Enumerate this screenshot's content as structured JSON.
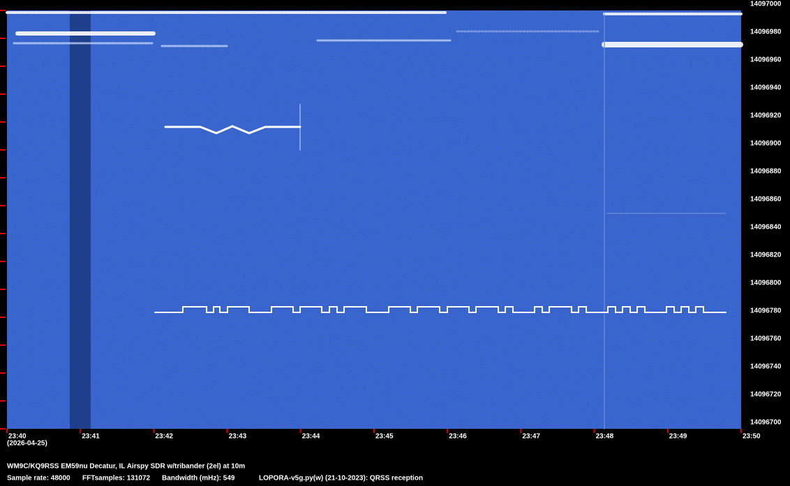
{
  "chart_data": {
    "type": "spectrogram",
    "xticks": [
      "23:40",
      "23:41",
      "23:42",
      "23:43",
      "23:44",
      "23:45",
      "23:46",
      "23:47",
      "23:48",
      "23:49",
      "23:50"
    ],
    "date": "(2026-04-25)",
    "ylim": [
      14096700,
      14097000
    ],
    "yticks": [
      14097000,
      14096980,
      14096960,
      14096940,
      14096920,
      14096900,
      14096880,
      14096860,
      14096840,
      14096820,
      14096800,
      14096780,
      14096760,
      14096740,
      14096720,
      14096700
    ],
    "footer": {
      "station": "WM9C/KQ9RSS EM59nu Decatur, IL  Airspy SDR w/tribander (2el) at 10m",
      "sample_rate": "Sample rate: 48000",
      "fft_samples": "FFTsamples: 131072",
      "bandwidth": "Bandwidth (mHz): 549",
      "software": "LOPORA-v5g.py(w) (21-10-2023): QRSS reception"
    }
  }
}
